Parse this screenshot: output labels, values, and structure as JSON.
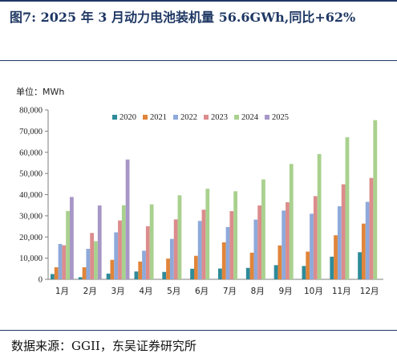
{
  "figure": {
    "label": "图7:",
    "title": "2025 年 3 月动力电池装机量 56.6GWh,同比+62%",
    "unit_label": "单位：MWh",
    "source_label": "数据来源：",
    "source_text": "GGII，东吴证券研究所"
  },
  "chart_data": {
    "type": "bar",
    "title": "",
    "xlabel": "",
    "ylabel": "",
    "ylim": [
      0,
      80000
    ],
    "yticks": [
      "0",
      "10,000",
      "20,000",
      "30,000",
      "40,000",
      "50,000",
      "60,000",
      "70,000",
      "80,000"
    ],
    "grid": false,
    "legend_position": "top-right",
    "categories": [
      "1月",
      "2月",
      "3月",
      "4月",
      "5月",
      "6月",
      "7月",
      "8月",
      "9月",
      "10月",
      "11月",
      "12月"
    ],
    "series": [
      {
        "name": "2020",
        "color": "#2e8b9a",
        "values": [
          2500,
          1000,
          2700,
          3700,
          3500,
          5000,
          5100,
          5400,
          6700,
          6300,
          10700,
          12800
        ]
      },
      {
        "name": "2021",
        "color": "#e0853a",
        "values": [
          5700,
          5700,
          9200,
          8400,
          9800,
          11100,
          17500,
          12600,
          16000,
          13100,
          20800,
          26300
        ]
      },
      {
        "name": "2022",
        "color": "#8ea9db",
        "values": [
          16700,
          14400,
          22200,
          13500,
          19100,
          27600,
          24700,
          28200,
          32500,
          31000,
          34500,
          36600
        ]
      },
      {
        "name": "2023",
        "color": "#dc8c8c",
        "values": [
          16100,
          21900,
          27800,
          25100,
          28300,
          32900,
          32200,
          34900,
          36400,
          39300,
          44900,
          47900
        ]
      },
      {
        "name": "2024",
        "color": "#a9d18e",
        "values": [
          32300,
          18000,
          35000,
          35400,
          39700,
          42800,
          41600,
          47200,
          54500,
          59200,
          67100,
          75200
        ]
      },
      {
        "name": "2025",
        "color": "#a797c7",
        "values": [
          38900,
          34900,
          56600,
          null,
          null,
          null,
          null,
          null,
          null,
          null,
          null,
          null
        ]
      }
    ]
  }
}
